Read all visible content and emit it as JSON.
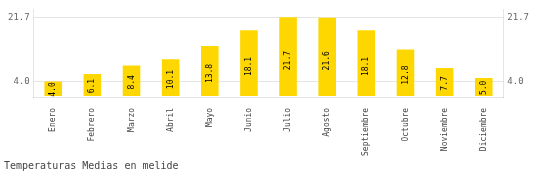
{
  "chart_data": {
    "type": "bar",
    "title": "Temperaturas Medias en melide",
    "categories": [
      "Enero",
      "Febrero",
      "Marzo",
      "Abril",
      "Mayo",
      "Junio",
      "Julio",
      "Agosto",
      "Septiembre",
      "Octubre",
      "Noviembre",
      "Diciembre"
    ],
    "values": [
      4.0,
      6.1,
      8.4,
      10.1,
      13.8,
      18.1,
      21.7,
      21.6,
      18.1,
      12.8,
      7.7,
      5.0
    ],
    "value_labels": [
      "4.0",
      "6.1",
      "8.4",
      "10.1",
      "13.8",
      "18.1",
      "21.7",
      "21.6",
      "18.1",
      "12.8",
      "7.7",
      "5.0"
    ],
    "data_labels": true,
    "color": "#FFD700",
    "ylim": [
      -0.5,
      23.87
    ],
    "yticks": [
      {
        "value": 4.0,
        "label": "4.0"
      },
      21.7
    ],
    "grid": true
  }
}
